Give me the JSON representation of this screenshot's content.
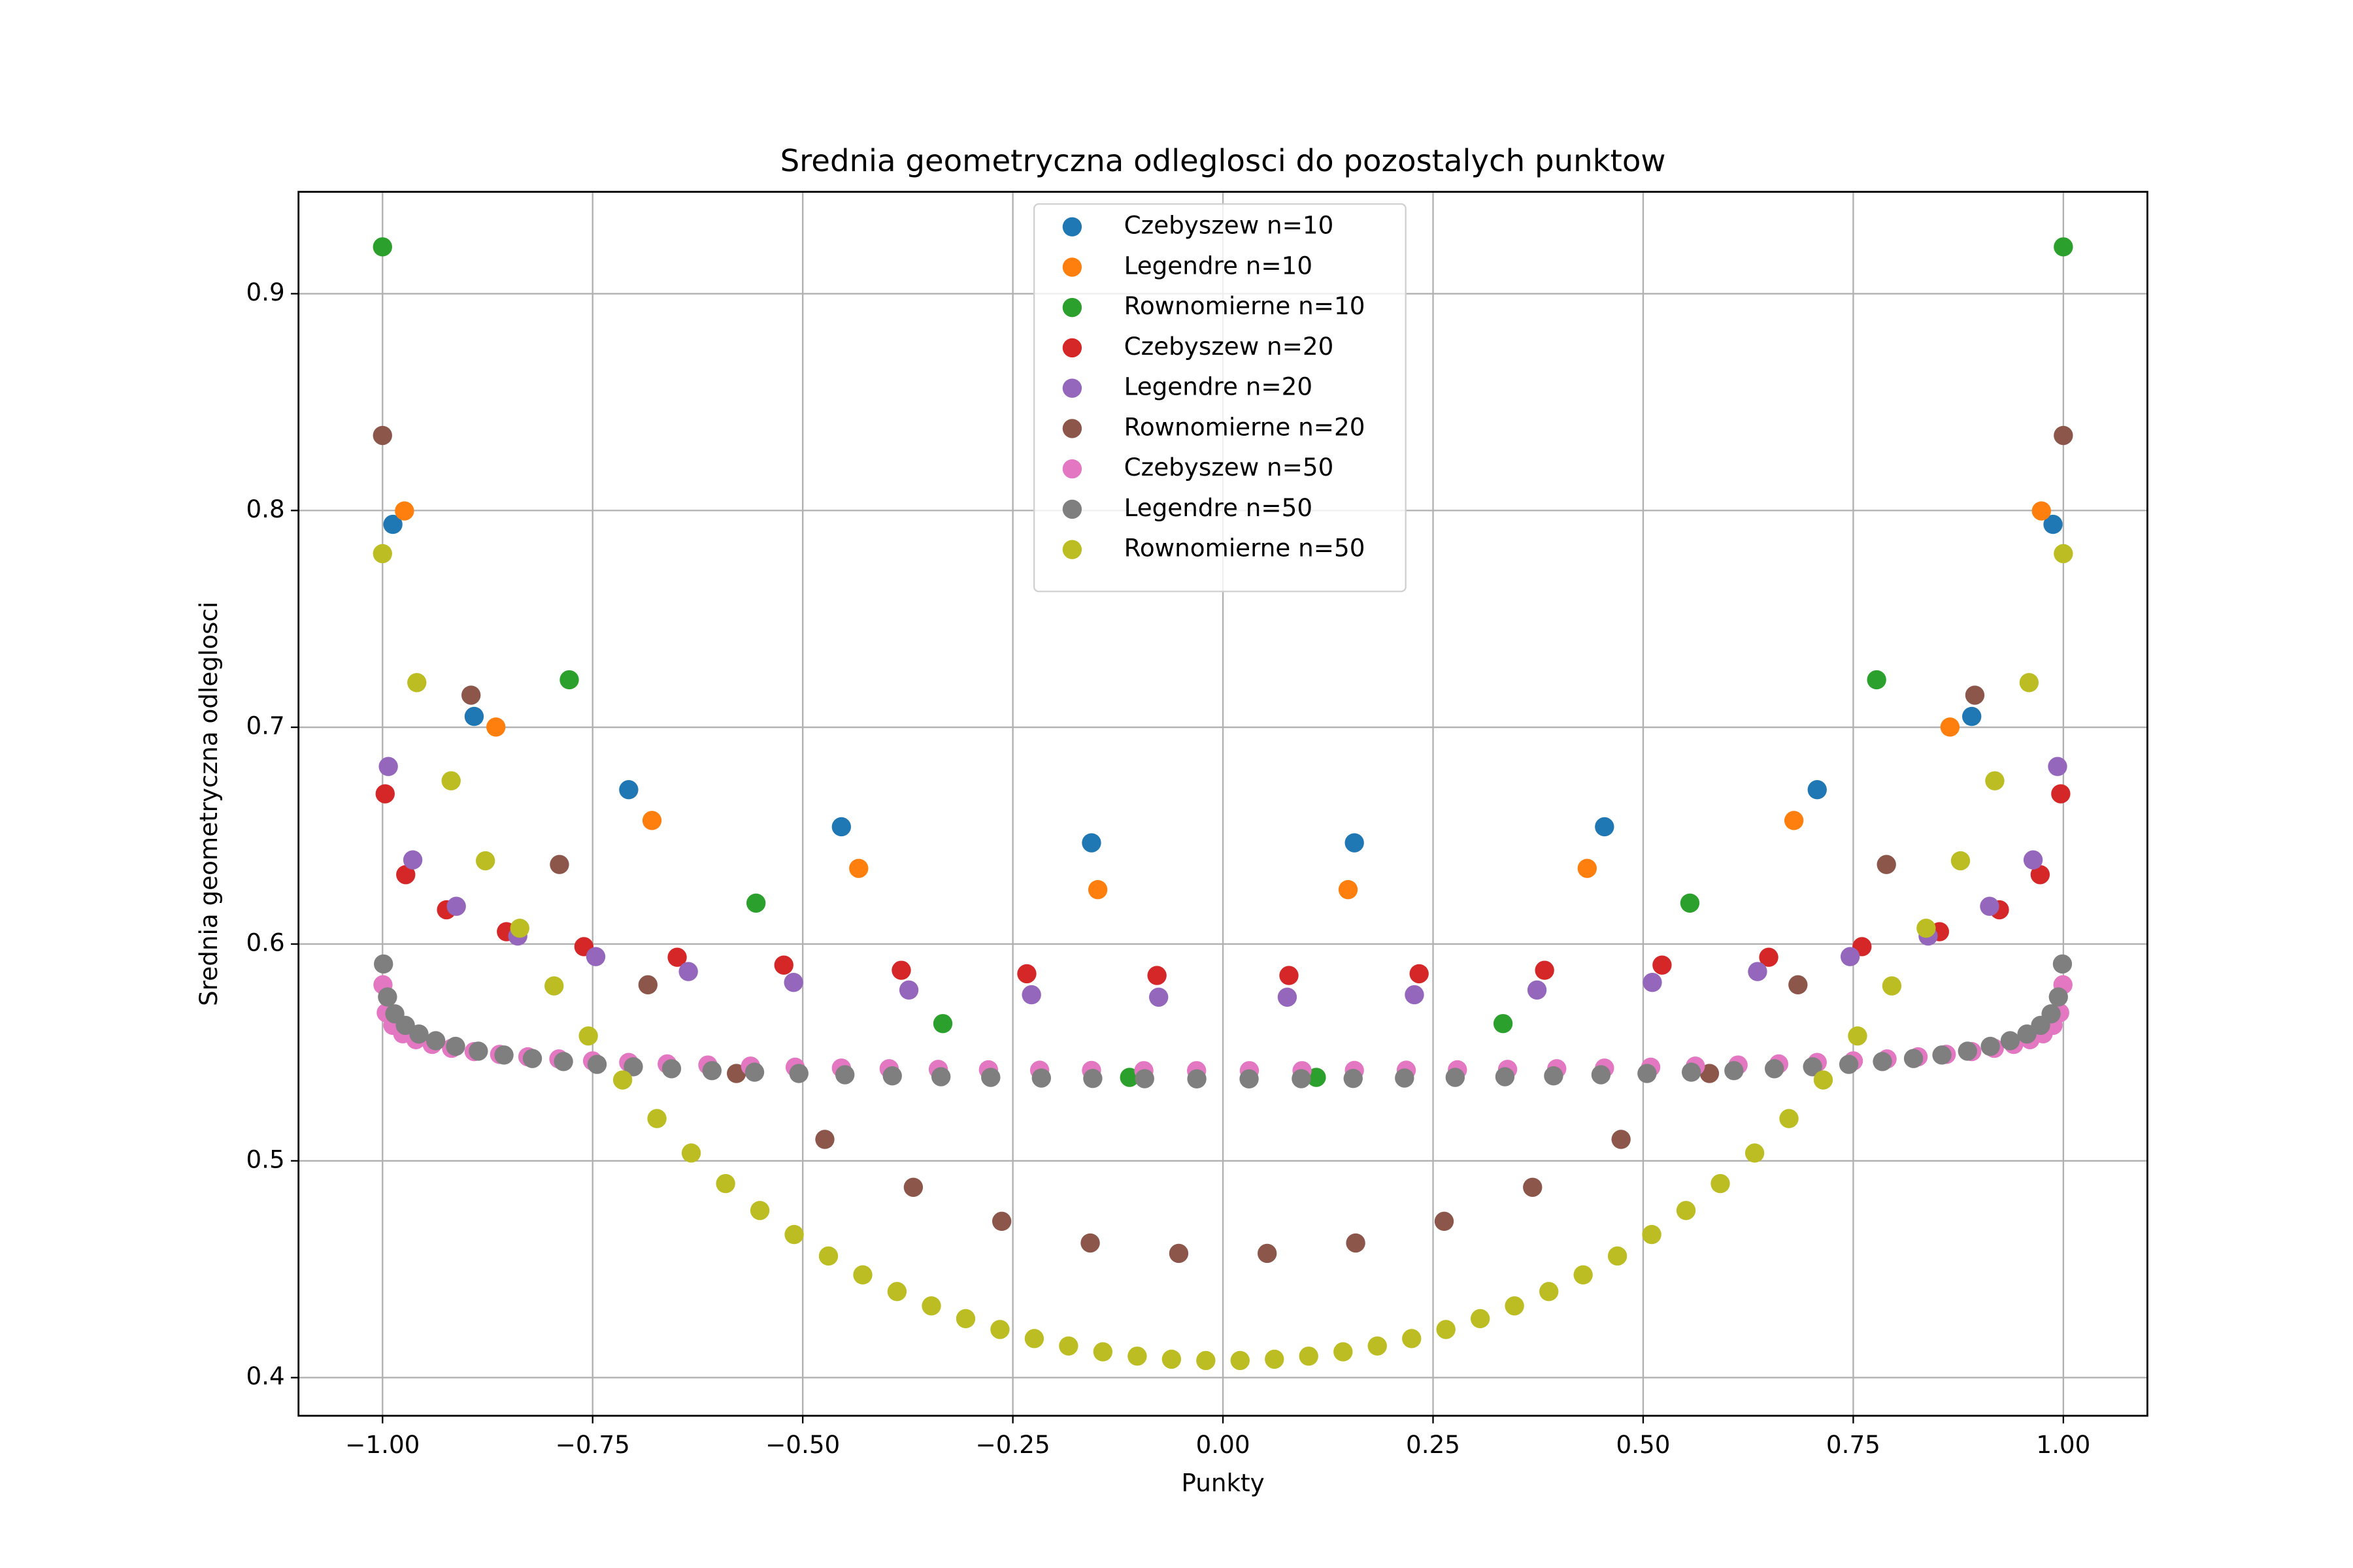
{
  "chart_data": {
    "type": "scatter",
    "title": "Srednia geometryczna odleglosci do pozostalych punktow",
    "xlabel": "Punkty",
    "ylabel": "Srednia geometryczna odleglosci",
    "xlim": [
      -1.1,
      1.1
    ],
    "ylim": [
      0.3824,
      0.947
    ],
    "xticks": [
      {
        "value": -1,
        "label": "−1.00"
      },
      {
        "value": -0.75,
        "label": "−0.75"
      },
      {
        "value": -0.5,
        "label": "−0.50"
      },
      {
        "value": -0.25,
        "label": "−0.25"
      },
      {
        "value": 0,
        "label": "0.00"
      },
      {
        "value": 0.25,
        "label": "0.25"
      },
      {
        "value": 0.5,
        "label": "0.50"
      },
      {
        "value": 0.75,
        "label": "0.75"
      },
      {
        "value": 1,
        "label": "1.00"
      }
    ],
    "yticks": [
      0.4,
      0.5,
      0.6,
      0.7,
      0.8,
      0.9
    ],
    "grid": true,
    "legend": "upper center",
    "series": [
      {
        "name": "Czebyszew n=10",
        "color": "#1f77b4",
        "x": [
          -0.9877,
          -0.891,
          -0.7071,
          -0.454,
          -0.1564,
          0.1564,
          0.454,
          0.7071,
          0.891,
          0.9877
        ],
        "values": [
          0.7936,
          0.705,
          0.6712,
          0.6541,
          0.6467,
          0.6467,
          0.6541,
          0.6712,
          0.705,
          0.7936
        ]
      },
      {
        "name": "Legendre n=10",
        "color": "#ff7f0e",
        "x": [
          -0.9739,
          -0.8651,
          -0.6794,
          -0.4334,
          -0.1489,
          0.1489,
          0.4334,
          0.6794,
          0.8651,
          0.9739
        ],
        "values": [
          0.7998,
          0.7001,
          0.657,
          0.6349,
          0.6251,
          0.6251,
          0.6349,
          0.657,
          0.7001,
          0.7998
        ]
      },
      {
        "name": "Rownomierne n=10",
        "color": "#2ca02c",
        "x": [
          -1,
          -0.7778,
          -0.5556,
          -0.3333,
          -0.1111,
          0.1111,
          0.3333,
          0.5556,
          0.7778,
          1
        ],
        "values": [
          0.9216,
          0.7219,
          0.6189,
          0.5633,
          0.5385,
          0.5385,
          0.5633,
          0.6189,
          0.7219,
          0.9216
        ]
      },
      {
        "name": "Czebyszew n=20",
        "color": "#d62728",
        "x": [
          -0.9969,
          -0.9724,
          -0.9239,
          -0.8526,
          -0.7604,
          -0.6494,
          -0.5225,
          -0.3827,
          -0.2334,
          -0.0785,
          0.0785,
          0.2334,
          0.3827,
          0.5225,
          0.6494,
          0.7604,
          0.8526,
          0.9239,
          0.9724,
          0.9969
        ],
        "values": [
          0.6693,
          0.632,
          0.6158,
          0.6057,
          0.5988,
          0.5939,
          0.5903,
          0.5879,
          0.5863,
          0.5855,
          0.5855,
          0.5863,
          0.5879,
          0.5903,
          0.5939,
          0.5988,
          0.6057,
          0.6158,
          0.632,
          0.6693
        ]
      },
      {
        "name": "Legendre n=20",
        "color": "#9467bd",
        "x": [
          -0.9931,
          -0.964,
          -0.9122,
          -0.8391,
          -0.7463,
          -0.6361,
          -0.5109,
          -0.3737,
          -0.2278,
          -0.0765,
          0.0765,
          0.2278,
          0.3737,
          0.5109,
          0.6361,
          0.7463,
          0.8391,
          0.9122,
          0.964,
          0.9931
        ],
        "values": [
          0.6819,
          0.6388,
          0.6174,
          0.6037,
          0.5942,
          0.5873,
          0.5823,
          0.5788,
          0.5766,
          0.5755,
          0.5755,
          0.5766,
          0.5788,
          0.5823,
          0.5873,
          0.5942,
          0.6037,
          0.6174,
          0.6388,
          0.6819
        ]
      },
      {
        "name": "Rownomierne n=20",
        "color": "#8c564b",
        "x": [
          -1,
          -0.8947,
          -0.7895,
          -0.6842,
          -0.5789,
          -0.4737,
          -0.3684,
          -0.2632,
          -0.1579,
          -0.0526,
          0.0526,
          0.1579,
          0.2632,
          0.3684,
          0.4737,
          0.5789,
          0.6842,
          0.7895,
          0.8947,
          1
        ],
        "values": [
          0.8346,
          0.7148,
          0.6367,
          0.5812,
          0.5403,
          0.5099,
          0.4878,
          0.4721,
          0.4621,
          0.4573,
          0.4573,
          0.4621,
          0.4721,
          0.4878,
          0.5099,
          0.5403,
          0.5812,
          0.6367,
          0.7148,
          0.8346
        ]
      },
      {
        "name": "Czebyszew n=50",
        "color": "#e377c2",
        "x": [
          -0.9995,
          -0.9956,
          -0.9877,
          -0.9759,
          -0.9603,
          -0.9409,
          -0.9178,
          -0.891,
          -0.8607,
          -0.8271,
          -0.7902,
          -0.7501,
          -0.7071,
          -0.6613,
          -0.6129,
          -0.5621,
          -0.509,
          -0.454,
          -0.3972,
          -0.3387,
          -0.279,
          -0.2181,
          -0.1564,
          -0.0941,
          -0.0314,
          0.0314,
          0.0941,
          0.1564,
          0.2181,
          0.279,
          0.3387,
          0.3972,
          0.454,
          0.509,
          0.5621,
          0.6129,
          0.6613,
          0.7071,
          0.7501,
          0.7902,
          0.8271,
          0.8607,
          0.891,
          0.9178,
          0.9409,
          0.9603,
          0.9759,
          0.9877,
          0.9956,
          0.9995
        ],
        "values": [
          0.5812,
          0.5683,
          0.5625,
          0.5586,
          0.5559,
          0.5537,
          0.5519,
          0.5504,
          0.5491,
          0.548,
          0.547,
          0.5461,
          0.5454,
          0.5447,
          0.5442,
          0.5437,
          0.5432,
          0.5428,
          0.5425,
          0.5422,
          0.542,
          0.5418,
          0.5417,
          0.5416,
          0.5416,
          0.5416,
          0.5416,
          0.5417,
          0.5418,
          0.542,
          0.5422,
          0.5425,
          0.5428,
          0.5432,
          0.5437,
          0.5442,
          0.5447,
          0.5454,
          0.5461,
          0.547,
          0.548,
          0.5491,
          0.5504,
          0.5519,
          0.5537,
          0.5559,
          0.5586,
          0.5625,
          0.5683,
          0.5812
        ]
      },
      {
        "name": "Legendre n=50",
        "color": "#7f7f7f",
        "x": [
          -0.9989,
          -0.9941,
          -0.9854,
          -0.9729,
          -0.9567,
          -0.9367,
          -0.9131,
          -0.886,
          -0.8555,
          -0.8217,
          -0.7847,
          -0.7447,
          -0.7016,
          -0.6561,
          -0.608,
          -0.5573,
          -0.5046,
          -0.4498,
          -0.3934,
          -0.3355,
          -0.2763,
          -0.216,
          -0.1549,
          -0.0932,
          -0.0311,
          0.0311,
          0.0932,
          0.1549,
          0.216,
          0.2763,
          0.3355,
          0.3934,
          0.4498,
          0.5046,
          0.5573,
          0.608,
          0.6561,
          0.7016,
          0.7447,
          0.7847,
          0.8217,
          0.8555,
          0.886,
          0.9131,
          0.9367,
          0.9567,
          0.9729,
          0.9854,
          0.9941,
          0.9989
        ],
        "values": [
          0.5908,
          0.5756,
          0.5678,
          0.5625,
          0.5585,
          0.5554,
          0.5528,
          0.5506,
          0.5488,
          0.5472,
          0.5458,
          0.5445,
          0.5434,
          0.5425,
          0.5416,
          0.5409,
          0.5403,
          0.5397,
          0.5392,
          0.5388,
          0.5385,
          0.5382,
          0.538,
          0.5379,
          0.5378,
          0.5378,
          0.5379,
          0.538,
          0.5382,
          0.5385,
          0.5388,
          0.5392,
          0.5397,
          0.5403,
          0.5409,
          0.5416,
          0.5425,
          0.5434,
          0.5445,
          0.5458,
          0.5472,
          0.5488,
          0.5506,
          0.5528,
          0.5554,
          0.5585,
          0.5625,
          0.5678,
          0.5756,
          0.5908
        ]
      },
      {
        "name": "Rownomierne n=50",
        "color": "#bcbd22",
        "x": [
          -1,
          -0.9592,
          -0.9184,
          -0.8776,
          -0.8367,
          -0.7959,
          -0.7551,
          -0.7143,
          -0.6735,
          -0.6327,
          -0.5918,
          -0.551,
          -0.5102,
          -0.4694,
          -0.4286,
          -0.3878,
          -0.3469,
          -0.3061,
          -0.2653,
          -0.2245,
          -0.1837,
          -0.1429,
          -0.102,
          -0.0612,
          -0.0204,
          0.0204,
          0.0612,
          0.102,
          0.1429,
          0.1837,
          0.2245,
          0.2653,
          0.3061,
          0.3469,
          0.3878,
          0.4286,
          0.4694,
          0.5102,
          0.551,
          0.5918,
          0.6327,
          0.6735,
          0.7143,
          0.7551,
          0.7959,
          0.8367,
          0.8776,
          0.9184,
          0.9592,
          1
        ],
        "values": [
          0.7801,
          0.7206,
          0.6753,
          0.6384,
          0.6073,
          0.5807,
          0.5576,
          0.5373,
          0.5195,
          0.5036,
          0.4895,
          0.4771,
          0.466,
          0.4561,
          0.4474,
          0.4397,
          0.4331,
          0.4272,
          0.4222,
          0.418,
          0.4146,
          0.4119,
          0.4099,
          0.4085,
          0.4079,
          0.4079,
          0.4085,
          0.4099,
          0.4119,
          0.4146,
          0.418,
          0.4222,
          0.4272,
          0.4331,
          0.4397,
          0.4474,
          0.4561,
          0.466,
          0.4771,
          0.4895,
          0.5036,
          0.5195,
          0.5373,
          0.5576,
          0.5807,
          0.6073,
          0.6384,
          0.6753,
          0.7206,
          0.7801
        ]
      }
    ]
  }
}
